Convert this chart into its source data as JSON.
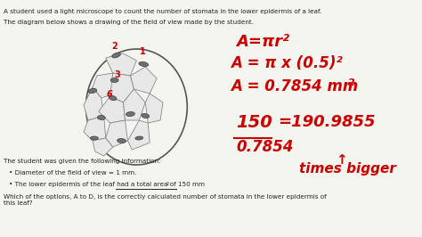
{
  "bg_color": "#f5f5f0",
  "text_color_black": "#222222",
  "text_color_red": "#cc0000",
  "title_text": "A student used a light microscope to count the number of stomata in the lower epidermis of a leaf.",
  "subtitle_text": "The diagram below shows a drawing of the field of view made by the student.",
  "info_header": "The student was given the following information:",
  "bullet1": "Diameter of the field of view = 1 mm.",
  "bullet2": "The lower epidermis of the leaf had a total area of 150 mm",
  "bullet2_super": "2",
  "question": "Which of the options, A to D, is the correctly calculated number of stomata in the lower epidermis of\nthis leaf?",
  "formula_line1": "A=πr²",
  "formula_line2": "A = π x (0.5)²",
  "formula_line3": "A = 0.7854 mm²",
  "calc_num": "150",
  "calc_den": "0.7854",
  "calc_result": "=190.9855",
  "calc_label": "times bigger",
  "arrow_label": "↑"
}
